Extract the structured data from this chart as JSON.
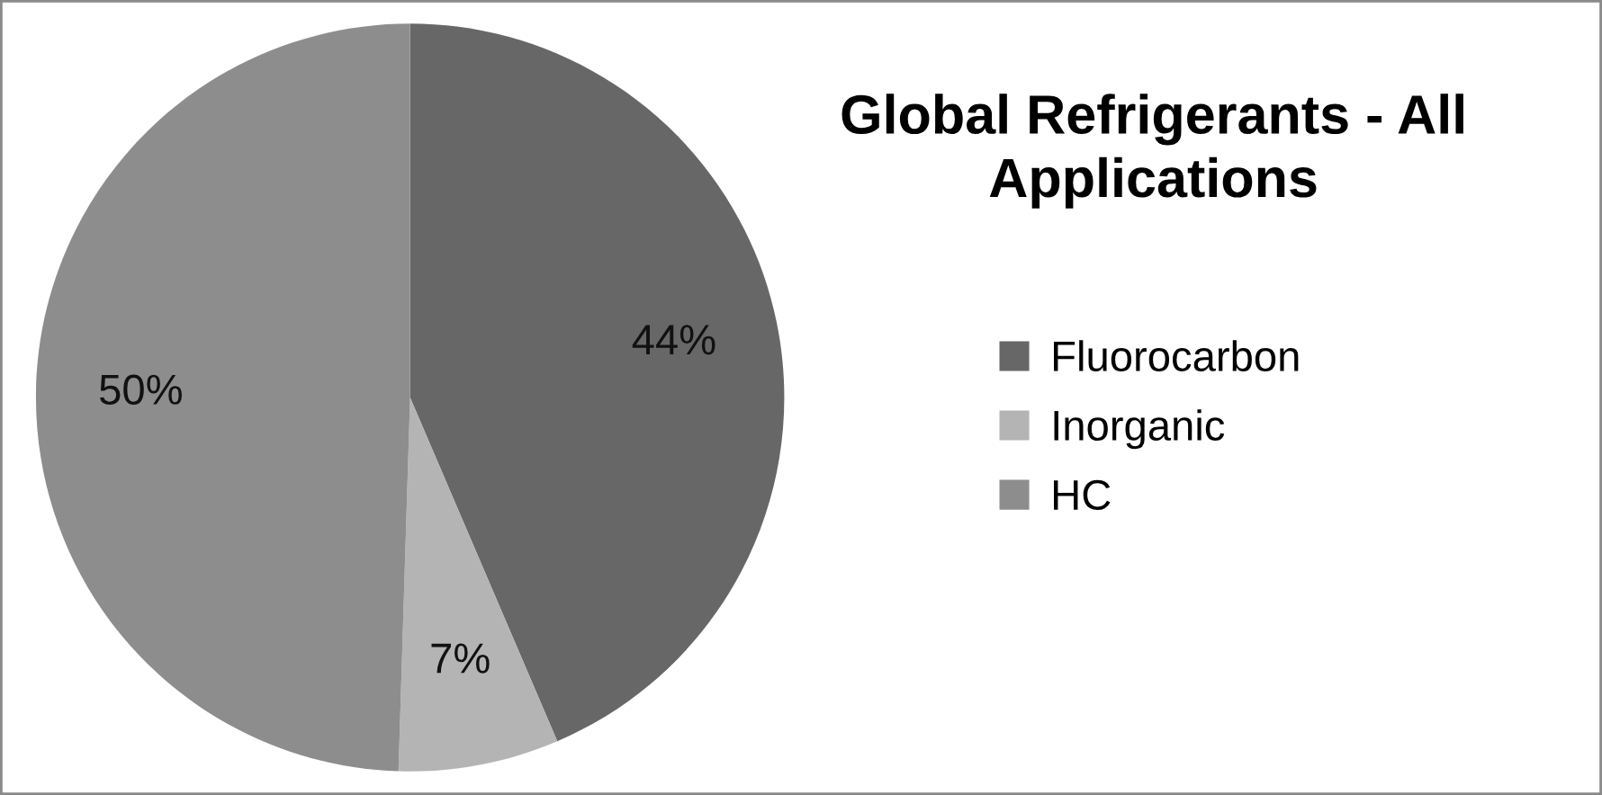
{
  "chart_data": {
    "type": "pie",
    "title": "Global Refrigerants - All\nApplications",
    "categories": [
      "Fluorocarbon",
      "Inorganic",
      "HC"
    ],
    "values": [
      44,
      7,
      50
    ],
    "colors": [
      "#676767",
      "#b4b4b4",
      "#8d8d8d"
    ],
    "value_labels": [
      "44%",
      "7%",
      "50%"
    ],
    "legend": "right"
  }
}
